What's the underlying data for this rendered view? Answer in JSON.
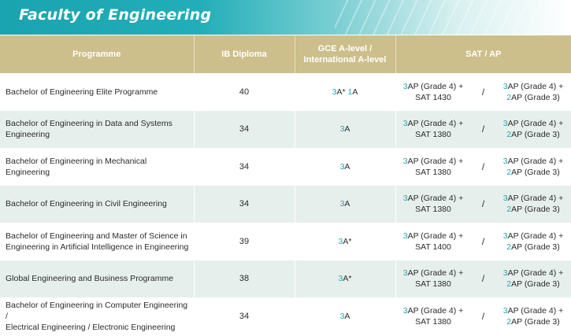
{
  "title": "Faculty of Engineering",
  "headers": {
    "programme": "Programme",
    "ib": "IB Diploma",
    "gce_line1": "GCE A-level /",
    "gce_line2": "International A-level",
    "sat": "SAT / AP"
  },
  "rows": [
    {
      "programme_line1": "Bachelor of Engineering Elite Programme",
      "programme_line2": "",
      "ib": "40",
      "gce": [
        {
          "n": "3",
          "g": "A*"
        },
        {
          "n": "1",
          "g": "A"
        }
      ],
      "sat_left": {
        "n": "3",
        "l1": "AP (Grade 4) +",
        "l2": "SAT 1430"
      },
      "sat_right": {
        "n1": "3",
        "l1": "AP (Grade 4) +",
        "n2": "2",
        "l2": "AP (Grade 3)"
      }
    },
    {
      "programme_line1": "Bachelor of Engineering in Data and Systems",
      "programme_line2": "Engineering",
      "ib": "34",
      "gce": [
        {
          "n": "3",
          "g": "A"
        }
      ],
      "sat_left": {
        "n": "3",
        "l1": "AP (Grade 4) +",
        "l2": "SAT 1380"
      },
      "sat_right": {
        "n1": "3",
        "l1": "AP (Grade 4) +",
        "n2": "2",
        "l2": "AP (Grade 3)"
      }
    },
    {
      "programme_line1": "Bachelor of Engineering in Mechanical Engineering",
      "programme_line2": "",
      "ib": "34",
      "gce": [
        {
          "n": "3",
          "g": "A"
        }
      ],
      "sat_left": {
        "n": "3",
        "l1": "AP (Grade 4) +",
        "l2": "SAT 1380"
      },
      "sat_right": {
        "n1": "3",
        "l1": "AP (Grade 4) +",
        "n2": "2",
        "l2": "AP (Grade 3)"
      }
    },
    {
      "programme_line1": "Bachelor of Engineering in Civil Engineering",
      "programme_line2": "",
      "ib": "34",
      "gce": [
        {
          "n": "3",
          "g": "A"
        }
      ],
      "sat_left": {
        "n": "3",
        "l1": "AP (Grade 4) +",
        "l2": "SAT 1380"
      },
      "sat_right": {
        "n1": "3",
        "l1": "AP (Grade 4) +",
        "n2": "2",
        "l2": "AP (Grade 3)"
      }
    },
    {
      "programme_line1": "Bachelor of Engineering and Master of Science in",
      "programme_line2": "Engineering in Artificial Intelligence in Engineering",
      "ib": "39",
      "gce": [
        {
          "n": "3",
          "g": "A*"
        }
      ],
      "sat_left": {
        "n": "3",
        "l1": "AP (Grade 4) +",
        "l2": "SAT 1400"
      },
      "sat_right": {
        "n1": "3",
        "l1": "AP (Grade 4) +",
        "n2": "2",
        "l2": "AP (Grade 3)"
      }
    },
    {
      "programme_line1": "Global Engineering and Business Programme",
      "programme_line2": "",
      "ib": "38",
      "gce": [
        {
          "n": "3",
          "g": "A*"
        }
      ],
      "sat_left": {
        "n": "3",
        "l1": "AP (Grade 4) +",
        "l2": "SAT 1380"
      },
      "sat_right": {
        "n1": "3",
        "l1": "AP (Grade 4) +",
        "n2": "2",
        "l2": "AP (Grade 3)"
      }
    },
    {
      "programme_line1": "Bachelor of Engineering in Computer Engineering /",
      "programme_line2": "Electrical Engineering / Electronic Engineering",
      "ib": "34",
      "gce": [
        {
          "n": "3",
          "g": "A"
        }
      ],
      "sat_left": {
        "n": "3",
        "l1": "AP (Grade 4) +",
        "l2": "SAT 1380"
      },
      "sat_right": {
        "n1": "3",
        "l1": "AP (Grade 4) +",
        "n2": "2",
        "l2": "AP (Grade 3)"
      }
    }
  ],
  "separator": "/"
}
